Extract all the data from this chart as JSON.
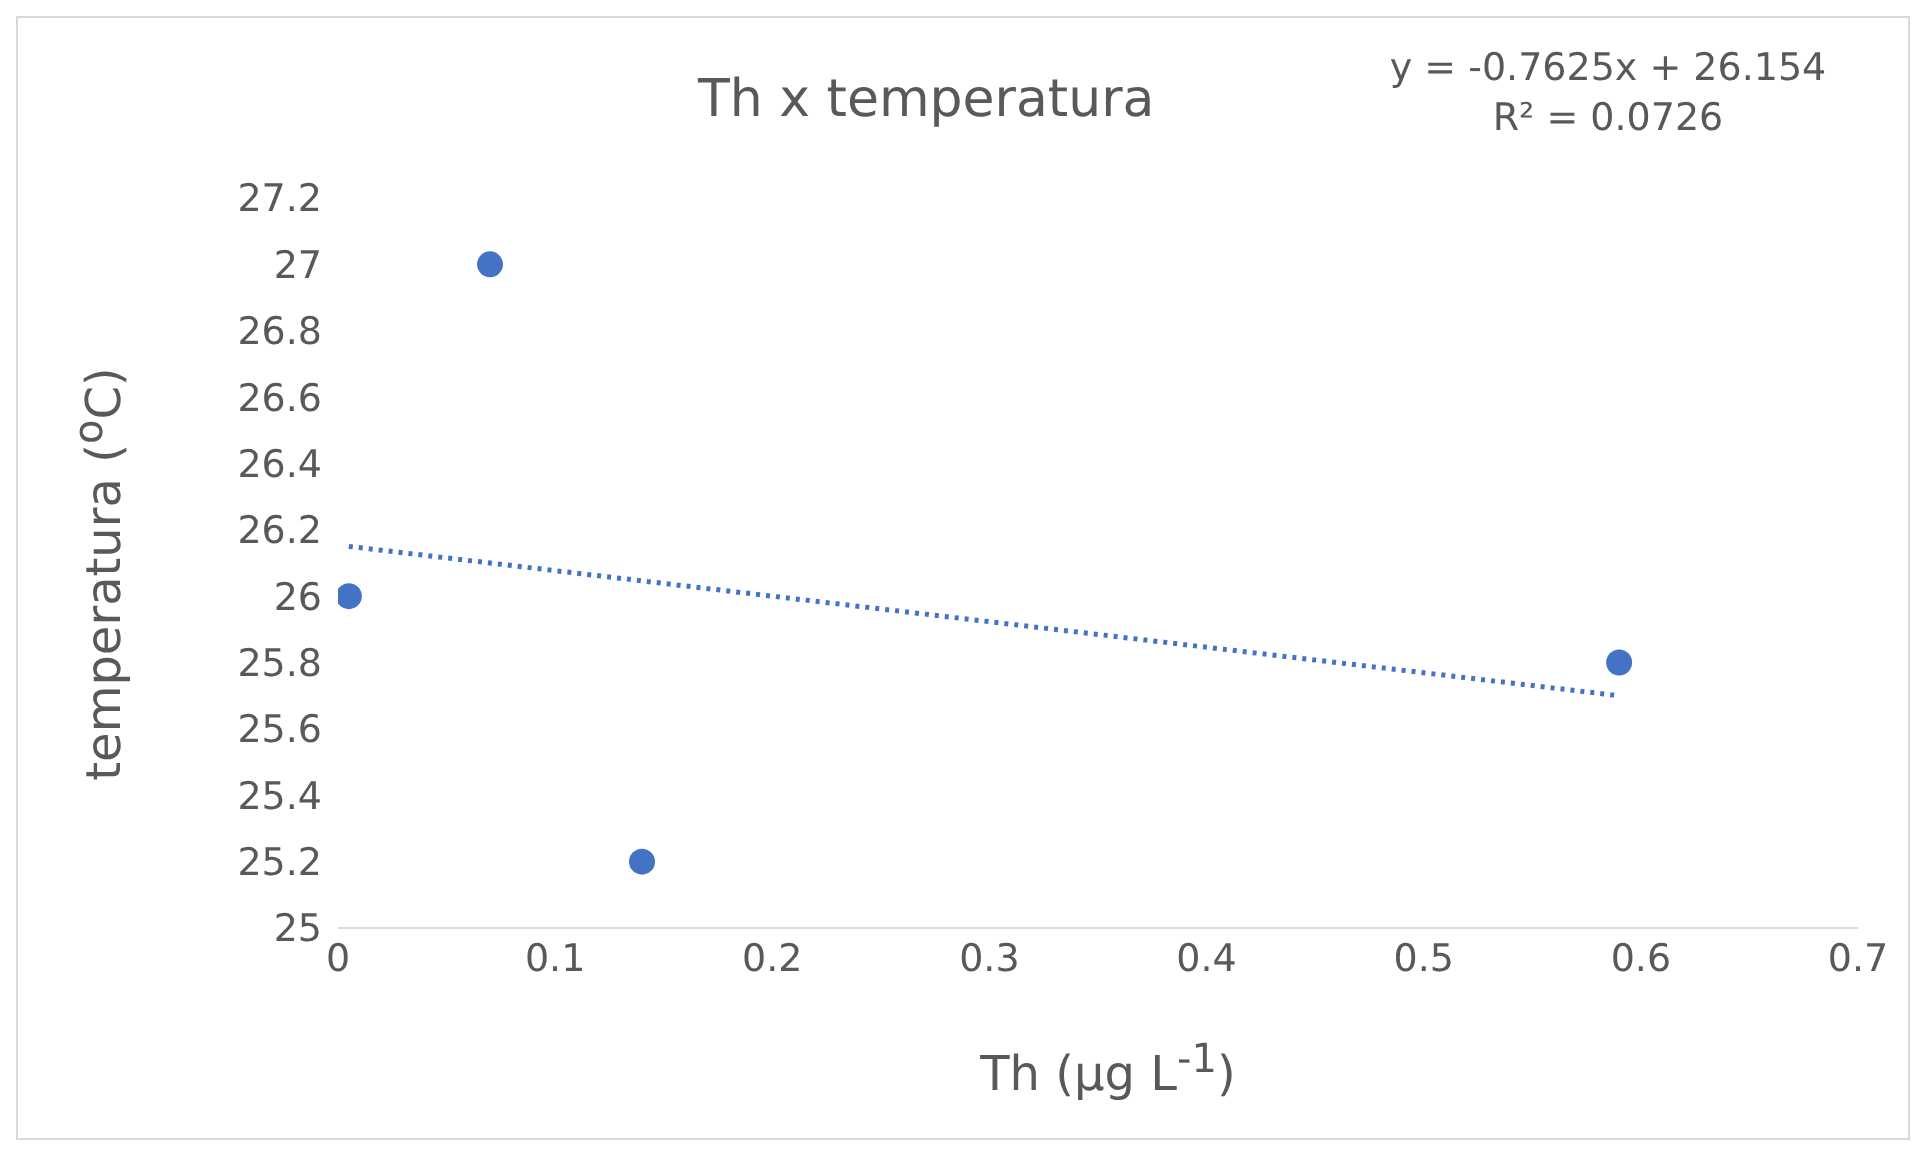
{
  "chart_data": {
    "type": "scatter",
    "title": "Th x temperatura",
    "xlabel": "Th (µg L$^{-1}$)",
    "ylabel": "temperatura ($^{o}$C)",
    "annotations": [
      "y = -0.7625x + 26.154",
      "R² = 0.0726"
    ],
    "x": [
      0.005,
      0.07,
      0.14,
      0.59
    ],
    "series": [
      {
        "color": "#4472c4",
        "values": [
          26.0,
          27.0,
          25.2,
          25.8
        ],
        "marker": "circle"
      },
      {
        "type": "line",
        "color": "#4472c4",
        "x": [
          0.005,
          0.59
        ],
        "values": [
          26.15,
          25.7
        ],
        "line_style": "dotted",
        "marker": "none"
      }
    ],
    "xlim": [
      0,
      0.7
    ],
    "xticks": [
      0,
      0.1,
      0.2,
      0.3,
      0.4,
      0.5,
      0.6,
      0.7
    ],
    "ylim": [
      25,
      27.2
    ],
    "yticks": [
      25,
      25.2,
      25.4,
      25.6,
      25.8,
      26,
      26.2,
      26.4,
      26.6,
      26.8,
      27,
      27.2
    ],
    "grid": false,
    "legend": false
  }
}
